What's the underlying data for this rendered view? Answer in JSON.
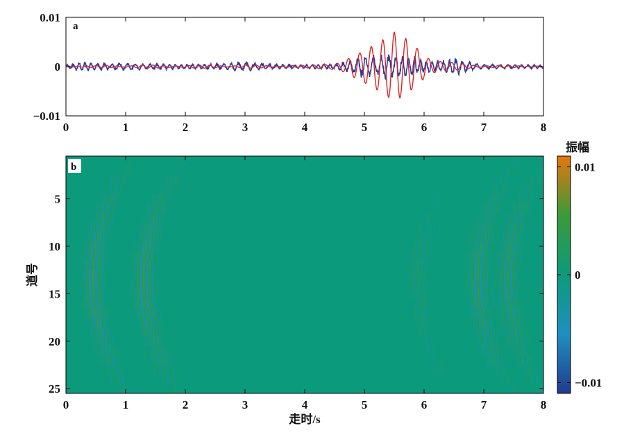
{
  "chart_data": [
    {
      "panel": "a",
      "type": "line",
      "xlim": [
        0,
        8
      ],
      "ylim": [
        -0.01,
        0.01
      ],
      "x_ticks": [
        "0",
        "1",
        "2",
        "3",
        "4",
        "5",
        "6",
        "7",
        "8"
      ],
      "y_ticks": [
        "0.01",
        "0",
        "−0.01"
      ],
      "grid": false,
      "series": [
        {
          "color": "#2b3a9a",
          "points": [
            [
              0,
              0
            ],
            [
              0.2,
              0.001
            ],
            [
              0.5,
              -0.0007
            ],
            [
              1,
              0.0008
            ],
            [
              1.5,
              -0.0006
            ],
            [
              2,
              0.0005
            ],
            [
              2.5,
              -0.0006
            ],
            [
              3,
              0.001
            ],
            [
              3.5,
              -0.0005
            ],
            [
              4,
              0.0004
            ],
            [
              4.5,
              -0.0006
            ],
            [
              4.8,
              0.0015
            ],
            [
              5,
              0.0025
            ],
            [
              5.2,
              -0.002
            ],
            [
              5.4,
              0.003
            ],
            [
              5.6,
              -0.0025
            ],
            [
              5.8,
              0.0022
            ],
            [
              6,
              -0.0015
            ],
            [
              6.3,
              0.0012
            ],
            [
              6.5,
              0.002
            ],
            [
              6.8,
              -0.0008
            ],
            [
              7,
              0.0005
            ],
            [
              7.5,
              -0.0004
            ],
            [
              8,
              0
            ]
          ]
        },
        {
          "color": "#dd2222",
          "points": [
            [
              0,
              0
            ],
            [
              1,
              0.0002
            ],
            [
              2,
              -0.0002
            ],
            [
              3,
              0.0002
            ],
            [
              4,
              0.0001
            ],
            [
              4.6,
              0.0008
            ],
            [
              4.9,
              0.0025
            ],
            [
              5.1,
              0.004
            ],
            [
              5.3,
              0.0055
            ],
            [
              5.5,
              0.007
            ],
            [
              5.55,
              -0.0066
            ],
            [
              5.7,
              0.0055
            ],
            [
              5.9,
              0.0035
            ],
            [
              6.1,
              -0.0015
            ],
            [
              6.4,
              0.0008
            ],
            [
              6.8,
              0.0003
            ],
            [
              7.5,
              0.0001
            ],
            [
              8,
              0
            ]
          ]
        }
      ]
    },
    {
      "panel": "b",
      "type": "heatmap",
      "xlim": [
        0,
        8
      ],
      "ylim": [
        25,
        1
      ],
      "x_ticks": [
        "0",
        "1",
        "2",
        "3",
        "4",
        "5",
        "6",
        "7",
        "8"
      ],
      "y_ticks": [
        "5",
        "10",
        "15",
        "20",
        "25"
      ],
      "xlabel": "走时/s",
      "ylabel": "道号",
      "colorbar": {
        "label": "振幅",
        "range": [
          -0.011,
          0.011
        ],
        "ticks": [
          "0.01",
          "0",
          "−0.01"
        ],
        "colors": [
          "#1f3b8f",
          "#1f8fbf",
          "#0c9a7c",
          "#3a9a3a",
          "#e5760e"
        ]
      },
      "events": [
        {
          "apex_trace": 13.5,
          "apex_time": 0.45,
          "curvature": 0.004,
          "amplitude": 0.006
        },
        {
          "apex_trace": 13.5,
          "apex_time": 1.3,
          "curvature": 0.004,
          "amplitude": 0.006
        },
        {
          "apex_trace": 13.5,
          "apex_time": 6.9,
          "curvature": 0.004,
          "amplitude": 0.005
        },
        {
          "apex_trace": 13.5,
          "apex_time": 7.4,
          "curvature": 0.004,
          "amplitude": 0.005
        },
        {
          "apex_trace": 13.5,
          "apex_time": 5.9,
          "curvature": 0.004,
          "amplitude": 0.002
        }
      ]
    }
  ]
}
